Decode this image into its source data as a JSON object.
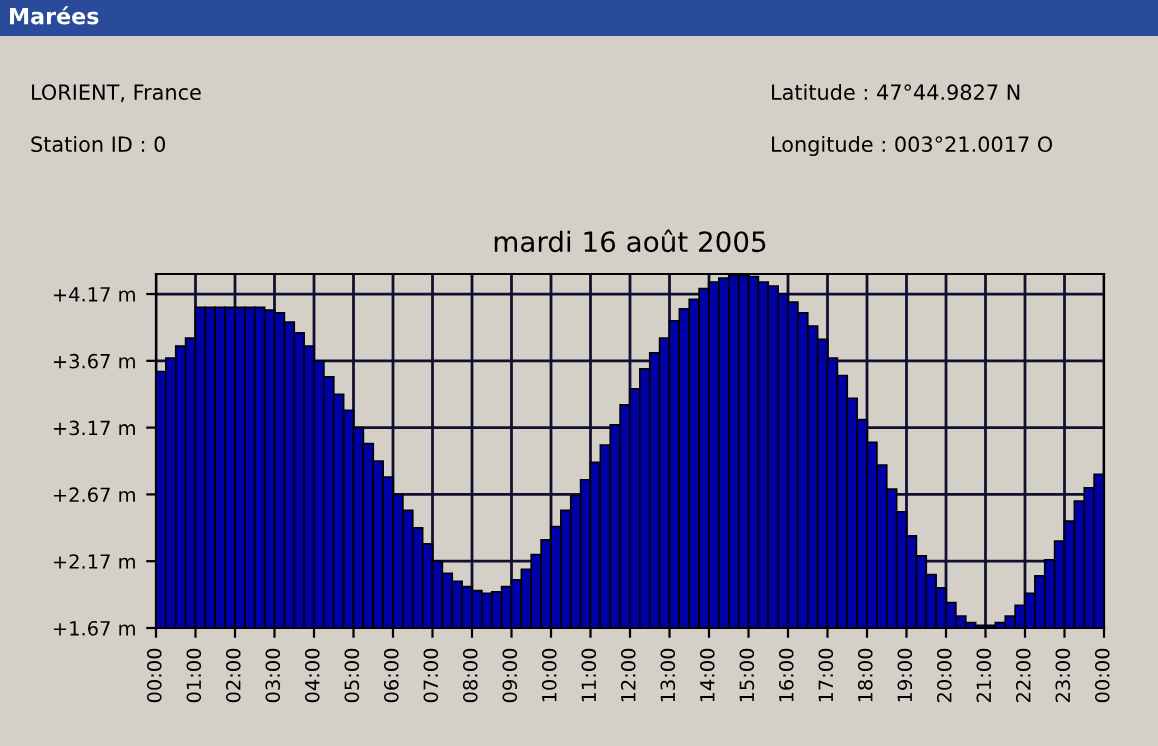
{
  "chart_data": {
    "type": "bar",
    "title": "mardi 16 août 2005",
    "annotations": [
      "Marées",
      "LORIENT, France",
      "Station ID : 0",
      "Latitude : 47°44.9827 N",
      "Longitude : 003°21.0017 O"
    ],
    "x": [
      0,
      0.25,
      0.5,
      0.75,
      1,
      1.25,
      1.5,
      1.75,
      2,
      2.25,
      2.5,
      2.75,
      3,
      3.25,
      3.5,
      3.75,
      4,
      4.25,
      4.5,
      4.75,
      5,
      5.25,
      5.5,
      5.75,
      6,
      6.25,
      6.5,
      6.75,
      7,
      7.25,
      7.5,
      7.75,
      8,
      8.25,
      8.5,
      8.75,
      9,
      9.25,
      9.5,
      9.75,
      10,
      10.25,
      10.5,
      10.75,
      11,
      11.25,
      11.5,
      11.75,
      12,
      12.25,
      12.5,
      12.75,
      13,
      13.25,
      13.5,
      13.75,
      14,
      14.25,
      14.5,
      14.75,
      15,
      15.25,
      15.5,
      15.75,
      16,
      16.25,
      16.5,
      16.75,
      17,
      17.25,
      17.5,
      17.75,
      18,
      18.25,
      18.5,
      18.75,
      19,
      19.25,
      19.5,
      19.75,
      20,
      20.25,
      20.5,
      20.75,
      21,
      21.25,
      21.5,
      21.75,
      22,
      22.25,
      22.5,
      22.75,
      23,
      23.25,
      23.5,
      23.75
    ],
    "series": [
      {
        "color": "#0000a8",
        "values": [
          3.59,
          3.69,
          3.78,
          3.84,
          4.07,
          4.07,
          4.07,
          4.07,
          4.07,
          4.07,
          4.07,
          4.05,
          4.03,
          3.96,
          3.88,
          3.78,
          3.67,
          3.55,
          3.42,
          3.3,
          3.17,
          3.05,
          2.92,
          2.8,
          2.67,
          2.55,
          2.42,
          2.3,
          2.17,
          2.08,
          2.02,
          1.98,
          1.95,
          1.93,
          1.94,
          1.98,
          2.03,
          2.11,
          2.22,
          2.33,
          2.43,
          2.55,
          2.66,
          2.78,
          2.91,
          3.04,
          3.19,
          3.34,
          3.46,
          3.61,
          3.73,
          3.84,
          3.97,
          4.06,
          4.13,
          4.21,
          4.26,
          4.29,
          4.31,
          4.31,
          4.3,
          4.26,
          4.23,
          4.17,
          4.11,
          4.03,
          3.93,
          3.83,
          3.69,
          3.56,
          3.39,
          3.23,
          3.06,
          2.89,
          2.71,
          2.54,
          2.36,
          2.21,
          2.07,
          1.97,
          1.86,
          1.76,
          1.71,
          1.69,
          1.69,
          1.71,
          1.76,
          1.84,
          1.93,
          2.06,
          2.18,
          2.32,
          2.47,
          2.62,
          2.72,
          2.82
        ]
      }
    ],
    "xlim": [
      0,
      24
    ],
    "xticks": [
      {
        "value": 0,
        "label": "00:00"
      },
      {
        "value": 1,
        "label": "01:00"
      },
      {
        "value": 2,
        "label": "02:00"
      },
      {
        "value": 3,
        "label": "03:00"
      },
      {
        "value": 4,
        "label": "04:00"
      },
      {
        "value": 5,
        "label": "05:00"
      },
      {
        "value": 6,
        "label": "06:00"
      },
      {
        "value": 7,
        "label": "07:00"
      },
      {
        "value": 8,
        "label": "08:00"
      },
      {
        "value": 9,
        "label": "09:00"
      },
      {
        "value": 10,
        "label": "10:00"
      },
      {
        "value": 11,
        "label": "11:00"
      },
      {
        "value": 12,
        "label": "12:00"
      },
      {
        "value": 13,
        "label": "13:00"
      },
      {
        "value": 14,
        "label": "14:00"
      },
      {
        "value": 15,
        "label": "15:00"
      },
      {
        "value": 16,
        "label": "16:00"
      },
      {
        "value": 17,
        "label": "17:00"
      },
      {
        "value": 18,
        "label": "18:00"
      },
      {
        "value": 19,
        "label": "19:00"
      },
      {
        "value": 20,
        "label": "20:00"
      },
      {
        "value": 21,
        "label": "21:00"
      },
      {
        "value": 22,
        "label": "22:00"
      },
      {
        "value": 23,
        "label": "23:00"
      },
      {
        "value": 24,
        "label": "00:00"
      }
    ],
    "ylim": [
      1.67,
      4.32
    ],
    "yticks": [
      {
        "value": 1.67,
        "label": "+1.67 m"
      },
      {
        "value": 2.17,
        "label": "+2.17 m"
      },
      {
        "value": 2.67,
        "label": "+2.67 m"
      },
      {
        "value": 3.17,
        "label": "+3.17 m"
      },
      {
        "value": 3.67,
        "label": "+3.67 m"
      },
      {
        "value": 4.17,
        "label": "+4.17 m"
      }
    ],
    "grid": true
  }
}
